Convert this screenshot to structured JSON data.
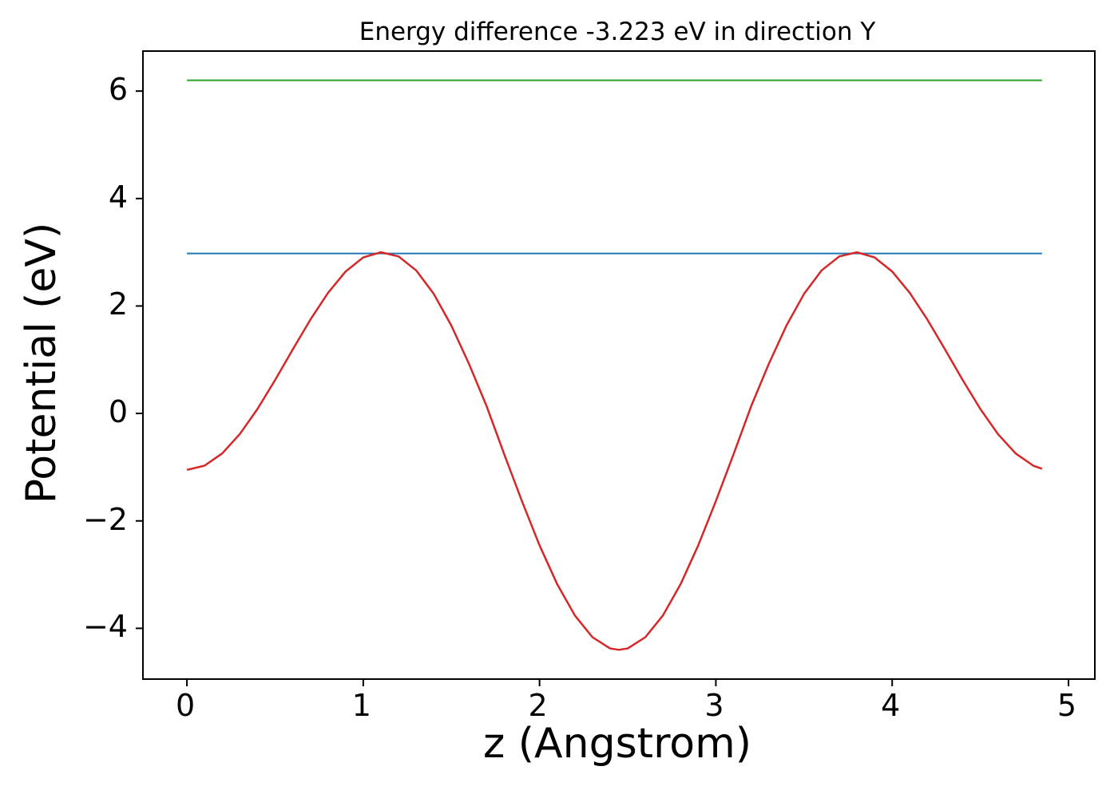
{
  "figure": {
    "background": "#ffffff"
  },
  "chart_data": {
    "type": "line",
    "title": "Energy difference -3.223 eV in direction Y",
    "xlabel": "z (Angstrom)",
    "ylabel": "Potential (eV)",
    "xlim": [
      -0.245,
      5.145
    ],
    "ylim": [
      -4.93,
      6.73
    ],
    "xticks": [
      0,
      1,
      2,
      3,
      4,
      5
    ],
    "xtick_labels": [
      "0",
      "1",
      "2",
      "3",
      "4",
      "5"
    ],
    "yticks": [
      -4,
      -2,
      0,
      2,
      4,
      6
    ],
    "ytick_labels": [
      "−4",
      "−2",
      "0",
      "2",
      "4",
      "6"
    ],
    "grid": false,
    "legend": "none",
    "energy_difference_ev": -3.223,
    "direction": "Y",
    "series": [
      {
        "name": "green-level-line",
        "color": "#2ca02c",
        "width": 2,
        "x": [
          0.0,
          4.85
        ],
        "y": [
          6.2,
          6.2
        ]
      },
      {
        "name": "blue-level-line",
        "color": "#1f77b4",
        "width": 2,
        "x": [
          0.0,
          4.85
        ],
        "y": [
          2.977,
          2.977
        ]
      },
      {
        "name": "potential-curve",
        "color": "#d62728",
        "width": 2.5,
        "x": [
          0.0,
          0.1,
          0.2,
          0.3,
          0.4,
          0.5,
          0.6,
          0.7,
          0.8,
          0.9,
          1.0,
          1.1,
          1.2,
          1.3,
          1.4,
          1.5,
          1.6,
          1.7,
          1.8,
          1.9,
          2.0,
          2.1,
          2.2,
          2.3,
          2.4,
          2.45,
          2.5,
          2.6,
          2.7,
          2.8,
          2.9,
          3.0,
          3.1,
          3.2,
          3.3,
          3.4,
          3.5,
          3.6,
          3.7,
          3.8,
          3.9,
          4.0,
          4.1,
          4.2,
          4.3,
          4.4,
          4.5,
          4.6,
          4.7,
          4.8,
          4.85
        ],
        "y": [
          -1.05,
          -0.972,
          -0.744,
          -0.384,
          0.083,
          0.621,
          1.19,
          1.745,
          2.243,
          2.642,
          2.904,
          3.0,
          2.923,
          2.663,
          2.225,
          1.633,
          0.921,
          0.133,
          -0.763,
          -1.632,
          -2.456,
          -3.178,
          -3.759,
          -4.165,
          -4.374,
          -4.4,
          -4.374,
          -4.165,
          -3.759,
          -3.178,
          -2.456,
          -1.632,
          -0.763,
          0.133,
          0.921,
          1.633,
          2.225,
          2.663,
          2.923,
          3.0,
          2.904,
          2.642,
          2.243,
          1.745,
          1.19,
          0.621,
          0.083,
          -0.384,
          -0.744,
          -0.972,
          -1.03
        ]
      }
    ]
  }
}
